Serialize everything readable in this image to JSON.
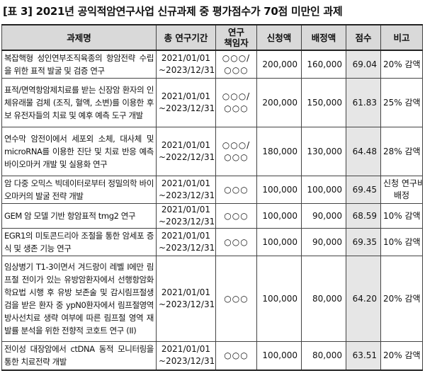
{
  "caption": "[표 3] 2021년 공익적암연구사업 신규과제 중 평가점수가 70점 미만인 과제",
  "headers": {
    "title": "과제명",
    "period": "총 연구기간",
    "pi": "연구\n책임자",
    "requested": "신청액",
    "allocated": "배정액",
    "score": "점수",
    "note": "비고"
  },
  "rows": [
    {
      "title": "복잡핵형 성인연부조직육종의 항암전략 수립을 위한 표적 발굴 및 검증 연구",
      "period": "2021/01/01\n~2023/12/31",
      "pi": "○○○/\n○○○",
      "requested": "200,000",
      "allocated": "160,000",
      "score": "69.04",
      "note": "20% 감액"
    },
    {
      "title": "표적/면역항암제치료를 받는 신장암 환자의 인체유래물 검체 (조직, 혈액, 소변)를 이용한 후보 유전자들의 치료 및 예후 예측 도구 개발",
      "period": "2021/01/01\n~2023/12/31",
      "pi": "○○○/\n○○○",
      "requested": "200,000",
      "allocated": "150,000",
      "score": "61.83",
      "note": "25% 감액"
    },
    {
      "title": "연수막 암전이에서 세포외 소체, 대사체 및 microRNA를 이용한 진단 및 치료 반응 예측 바이오마커 개발 및 실용화 연구",
      "period": "2021/01/01\n~2022/12/31",
      "pi": "○○○/\n○○○",
      "requested": "180,000",
      "allocated": "130,000",
      "score": "64.48",
      "note": "28% 감액"
    },
    {
      "title": "암 다중 오믹스 빅데이터로부터 정밀의학 바이오마커의 발굴 전략 개발",
      "period": "2021/01/01\n~2023/12/31",
      "pi": "○○○",
      "requested": "100,000",
      "allocated": "100,000",
      "score": "69.45",
      "note": "신청 연구비\n배정"
    },
    {
      "title": "GEM 암 모델 기반 항암표적 tmg2 연구",
      "period": "2021/01/01\n~2023/12/31",
      "pi": "○○○",
      "requested": "100,000",
      "allocated": "90,000",
      "score": "68.59",
      "note": "10% 감액"
    },
    {
      "title": "EGR1의 미토콘드리아 조절을 통한 암세포 증식 및 생존 기능 연구",
      "period": "2021/01/01\n~2023/12/31",
      "pi": "○○○",
      "requested": "100,000",
      "allocated": "90,000",
      "score": "69.35",
      "note": "10% 감액"
    },
    {
      "title": "임상병기 T1-3이면서 겨드랑이 레벨 I에만 림프절 전이가 있는 유방암환자에서 선행항암화학요법 시행 후 유방 보존술 및 감시림프절생검을 받은 환자 중 ypN0환자에서 림프절영역 방사선치료 생략 여부에 따른 림프절 영역 재발률 분석을 위한 전향적 코호트 연구 (II)",
      "period": "2021/01/01\n~2023/12/31",
      "pi": "○○○",
      "requested": "100,000",
      "allocated": "80,000",
      "score": "64.20",
      "note": "20% 감액"
    },
    {
      "title": "전이성 대장암에서 ctDNA 동적 모니터링을 통한 치료전략 개발",
      "period": "2021/01/01\n~2023/12/31",
      "pi": "○○○",
      "requested": "100,000",
      "allocated": "80,000",
      "score": "63.51",
      "note": "20% 감액"
    }
  ]
}
